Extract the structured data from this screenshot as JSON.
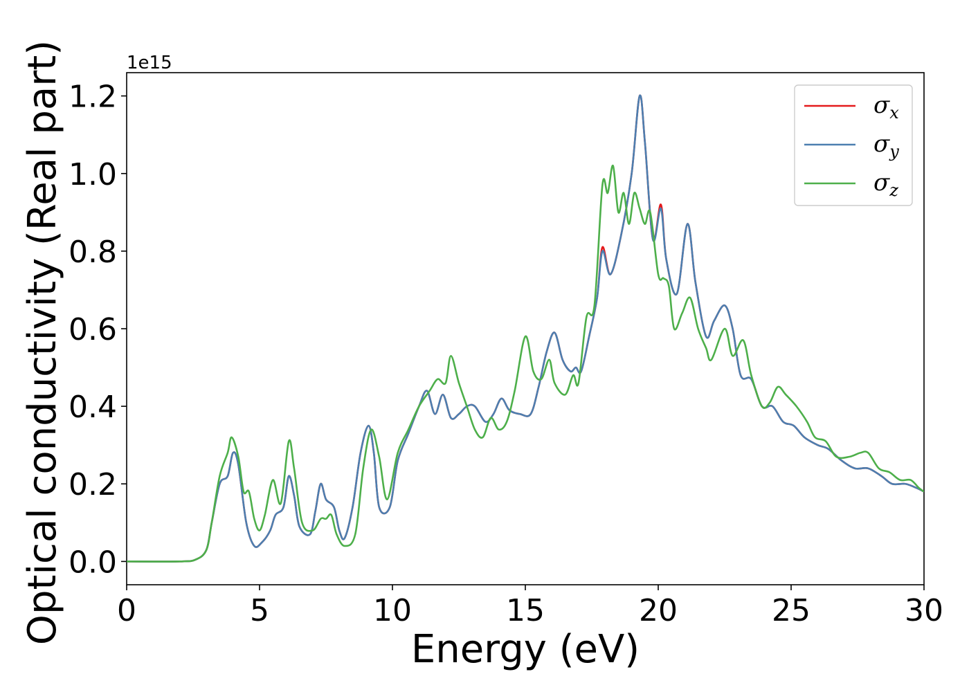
{
  "chart_data": {
    "type": "line",
    "title": "",
    "xlabel": "Energy (eV)",
    "ylabel": "Optical conductivity (Real part)",
    "y_offset_label": "1e15",
    "xlim": [
      0,
      30
    ],
    "ylim": [
      -0.06,
      1.26
    ],
    "xticks": [
      0,
      5,
      10,
      15,
      20,
      25,
      30
    ],
    "yticks": [
      0.0,
      0.2,
      0.4,
      0.6,
      0.8,
      1.0,
      1.2
    ],
    "xtick_labels": [
      "0",
      "5",
      "10",
      "15",
      "20",
      "25",
      "30"
    ],
    "ytick_labels": [
      "0.0",
      "0.2",
      "0.4",
      "0.6",
      "0.8",
      "1.0",
      "1.2"
    ],
    "grid": false,
    "legend_position": "top-right",
    "series": [
      {
        "name": "σ",
        "subscript": "x",
        "color": "#e41a1c",
        "points": [
          [
            0,
            0.0
          ],
          [
            2,
            0.0
          ],
          [
            2.6,
            0.005
          ],
          [
            3.0,
            0.03
          ],
          [
            3.2,
            0.1
          ],
          [
            3.5,
            0.2
          ],
          [
            3.8,
            0.22
          ],
          [
            4.0,
            0.28
          ],
          [
            4.2,
            0.25
          ],
          [
            4.5,
            0.1
          ],
          [
            4.8,
            0.04
          ],
          [
            5.1,
            0.05
          ],
          [
            5.4,
            0.08
          ],
          [
            5.6,
            0.12
          ],
          [
            5.9,
            0.14
          ],
          [
            6.1,
            0.22
          ],
          [
            6.3,
            0.17
          ],
          [
            6.5,
            0.09
          ],
          [
            6.9,
            0.07
          ],
          [
            7.1,
            0.13
          ],
          [
            7.3,
            0.2
          ],
          [
            7.5,
            0.16
          ],
          [
            7.8,
            0.14
          ],
          [
            8.0,
            0.08
          ],
          [
            8.2,
            0.06
          ],
          [
            8.5,
            0.14
          ],
          [
            8.8,
            0.28
          ],
          [
            9.1,
            0.35
          ],
          [
            9.3,
            0.28
          ],
          [
            9.5,
            0.14
          ],
          [
            9.9,
            0.14
          ],
          [
            10.2,
            0.26
          ],
          [
            10.6,
            0.33
          ],
          [
            11.0,
            0.4
          ],
          [
            11.3,
            0.44
          ],
          [
            11.6,
            0.38
          ],
          [
            11.9,
            0.43
          ],
          [
            12.2,
            0.37
          ],
          [
            12.5,
            0.38
          ],
          [
            12.8,
            0.4
          ],
          [
            13.1,
            0.4
          ],
          [
            13.5,
            0.36
          ],
          [
            13.8,
            0.38
          ],
          [
            14.1,
            0.42
          ],
          [
            14.4,
            0.39
          ],
          [
            14.8,
            0.38
          ],
          [
            15.2,
            0.38
          ],
          [
            15.5,
            0.45
          ],
          [
            15.8,
            0.54
          ],
          [
            16.1,
            0.59
          ],
          [
            16.4,
            0.52
          ],
          [
            16.7,
            0.49
          ],
          [
            16.9,
            0.5
          ],
          [
            17.1,
            0.49
          ],
          [
            17.4,
            0.58
          ],
          [
            17.7,
            0.68
          ],
          [
            17.9,
            0.81
          ],
          [
            18.2,
            0.74
          ],
          [
            18.6,
            0.84
          ],
          [
            19.0,
            1.0
          ],
          [
            19.3,
            1.2
          ],
          [
            19.5,
            1.08
          ],
          [
            19.8,
            0.83
          ],
          [
            20.1,
            0.92
          ],
          [
            20.3,
            0.78
          ],
          [
            20.7,
            0.69
          ],
          [
            21.1,
            0.87
          ],
          [
            21.4,
            0.72
          ],
          [
            21.8,
            0.58
          ],
          [
            22.1,
            0.62
          ],
          [
            22.5,
            0.66
          ],
          [
            22.8,
            0.6
          ],
          [
            23.1,
            0.48
          ],
          [
            23.5,
            0.47
          ],
          [
            23.9,
            0.4
          ],
          [
            24.3,
            0.4
          ],
          [
            24.7,
            0.36
          ],
          [
            25.1,
            0.35
          ],
          [
            25.5,
            0.32
          ],
          [
            26.0,
            0.3
          ],
          [
            26.4,
            0.29
          ],
          [
            26.9,
            0.26
          ],
          [
            27.4,
            0.24
          ],
          [
            27.9,
            0.24
          ],
          [
            28.4,
            0.22
          ],
          [
            28.8,
            0.2
          ],
          [
            29.3,
            0.2
          ],
          [
            29.7,
            0.19
          ],
          [
            30.0,
            0.18
          ]
        ]
      },
      {
        "name": "σ",
        "subscript": "y",
        "color": "#4c7fb0",
        "points": [
          [
            0,
            0.0
          ],
          [
            2,
            0.0
          ],
          [
            2.6,
            0.005
          ],
          [
            3.0,
            0.03
          ],
          [
            3.2,
            0.1
          ],
          [
            3.5,
            0.2
          ],
          [
            3.8,
            0.22
          ],
          [
            4.0,
            0.28
          ],
          [
            4.2,
            0.25
          ],
          [
            4.5,
            0.1
          ],
          [
            4.8,
            0.04
          ],
          [
            5.1,
            0.05
          ],
          [
            5.4,
            0.08
          ],
          [
            5.6,
            0.12
          ],
          [
            5.9,
            0.14
          ],
          [
            6.1,
            0.22
          ],
          [
            6.3,
            0.17
          ],
          [
            6.5,
            0.09
          ],
          [
            6.9,
            0.07
          ],
          [
            7.1,
            0.13
          ],
          [
            7.3,
            0.2
          ],
          [
            7.5,
            0.16
          ],
          [
            7.8,
            0.14
          ],
          [
            8.0,
            0.08
          ],
          [
            8.2,
            0.06
          ],
          [
            8.5,
            0.14
          ],
          [
            8.8,
            0.28
          ],
          [
            9.1,
            0.35
          ],
          [
            9.3,
            0.28
          ],
          [
            9.5,
            0.14
          ],
          [
            9.9,
            0.14
          ],
          [
            10.2,
            0.26
          ],
          [
            10.6,
            0.33
          ],
          [
            11.0,
            0.4
          ],
          [
            11.3,
            0.44
          ],
          [
            11.6,
            0.38
          ],
          [
            11.9,
            0.43
          ],
          [
            12.2,
            0.37
          ],
          [
            12.5,
            0.38
          ],
          [
            12.8,
            0.4
          ],
          [
            13.1,
            0.4
          ],
          [
            13.5,
            0.36
          ],
          [
            13.8,
            0.38
          ],
          [
            14.1,
            0.42
          ],
          [
            14.4,
            0.39
          ],
          [
            14.8,
            0.38
          ],
          [
            15.2,
            0.38
          ],
          [
            15.5,
            0.45
          ],
          [
            15.8,
            0.54
          ],
          [
            16.1,
            0.59
          ],
          [
            16.4,
            0.52
          ],
          [
            16.7,
            0.49
          ],
          [
            16.9,
            0.5
          ],
          [
            17.1,
            0.49
          ],
          [
            17.4,
            0.58
          ],
          [
            17.7,
            0.68
          ],
          [
            17.9,
            0.8
          ],
          [
            18.2,
            0.74
          ],
          [
            18.6,
            0.84
          ],
          [
            19.0,
            1.0
          ],
          [
            19.3,
            1.2
          ],
          [
            19.5,
            1.08
          ],
          [
            19.8,
            0.83
          ],
          [
            20.1,
            0.91
          ],
          [
            20.3,
            0.78
          ],
          [
            20.7,
            0.69
          ],
          [
            21.1,
            0.87
          ],
          [
            21.4,
            0.72
          ],
          [
            21.8,
            0.58
          ],
          [
            22.1,
            0.62
          ],
          [
            22.5,
            0.66
          ],
          [
            22.8,
            0.6
          ],
          [
            23.1,
            0.48
          ],
          [
            23.5,
            0.47
          ],
          [
            23.9,
            0.4
          ],
          [
            24.3,
            0.4
          ],
          [
            24.7,
            0.36
          ],
          [
            25.1,
            0.35
          ],
          [
            25.5,
            0.32
          ],
          [
            26.0,
            0.3
          ],
          [
            26.4,
            0.29
          ],
          [
            26.9,
            0.26
          ],
          [
            27.4,
            0.24
          ],
          [
            27.9,
            0.24
          ],
          [
            28.4,
            0.22
          ],
          [
            28.8,
            0.2
          ],
          [
            29.3,
            0.2
          ],
          [
            29.7,
            0.19
          ],
          [
            30.0,
            0.18
          ]
        ]
      },
      {
        "name": "σ",
        "subscript": "z",
        "color": "#4daf4a",
        "points": [
          [
            0,
            0.0
          ],
          [
            2,
            0.0
          ],
          [
            2.6,
            0.005
          ],
          [
            3.0,
            0.03
          ],
          [
            3.2,
            0.1
          ],
          [
            3.5,
            0.22
          ],
          [
            3.8,
            0.28
          ],
          [
            3.95,
            0.32
          ],
          [
            4.2,
            0.27
          ],
          [
            4.4,
            0.18
          ],
          [
            4.6,
            0.18
          ],
          [
            4.8,
            0.11
          ],
          [
            5.0,
            0.08
          ],
          [
            5.2,
            0.12
          ],
          [
            5.5,
            0.21
          ],
          [
            5.8,
            0.15
          ],
          [
            6.1,
            0.31
          ],
          [
            6.3,
            0.24
          ],
          [
            6.6,
            0.1
          ],
          [
            7.0,
            0.08
          ],
          [
            7.3,
            0.11
          ],
          [
            7.5,
            0.11
          ],
          [
            7.7,
            0.12
          ],
          [
            7.9,
            0.07
          ],
          [
            8.2,
            0.04
          ],
          [
            8.6,
            0.07
          ],
          [
            8.9,
            0.24
          ],
          [
            9.2,
            0.34
          ],
          [
            9.5,
            0.27
          ],
          [
            9.8,
            0.16
          ],
          [
            10.2,
            0.28
          ],
          [
            10.6,
            0.34
          ],
          [
            11.0,
            0.4
          ],
          [
            11.4,
            0.44
          ],
          [
            11.7,
            0.47
          ],
          [
            12.0,
            0.46
          ],
          [
            12.2,
            0.53
          ],
          [
            12.5,
            0.46
          ],
          [
            12.8,
            0.4
          ],
          [
            13.1,
            0.34
          ],
          [
            13.4,
            0.32
          ],
          [
            13.7,
            0.37
          ],
          [
            14.0,
            0.34
          ],
          [
            14.3,
            0.36
          ],
          [
            14.6,
            0.44
          ],
          [
            15.0,
            0.58
          ],
          [
            15.3,
            0.49
          ],
          [
            15.6,
            0.47
          ],
          [
            15.9,
            0.52
          ],
          [
            16.1,
            0.46
          ],
          [
            16.5,
            0.43
          ],
          [
            16.8,
            0.48
          ],
          [
            17.0,
            0.46
          ],
          [
            17.3,
            0.63
          ],
          [
            17.6,
            0.66
          ],
          [
            17.9,
            0.97
          ],
          [
            18.1,
            0.95
          ],
          [
            18.3,
            1.02
          ],
          [
            18.5,
            0.9
          ],
          [
            18.7,
            0.95
          ],
          [
            18.9,
            0.87
          ],
          [
            19.1,
            0.95
          ],
          [
            19.3,
            0.91
          ],
          [
            19.5,
            0.87
          ],
          [
            19.7,
            0.9
          ],
          [
            20.0,
            0.74
          ],
          [
            20.2,
            0.73
          ],
          [
            20.4,
            0.71
          ],
          [
            20.6,
            0.6
          ],
          [
            20.9,
            0.64
          ],
          [
            21.2,
            0.68
          ],
          [
            21.5,
            0.6
          ],
          [
            21.8,
            0.55
          ],
          [
            22.0,
            0.52
          ],
          [
            22.5,
            0.6
          ],
          [
            22.8,
            0.53
          ],
          [
            23.2,
            0.57
          ],
          [
            23.5,
            0.48
          ],
          [
            23.9,
            0.4
          ],
          [
            24.2,
            0.41
          ],
          [
            24.5,
            0.45
          ],
          [
            24.8,
            0.43
          ],
          [
            25.2,
            0.4
          ],
          [
            25.6,
            0.36
          ],
          [
            25.9,
            0.32
          ],
          [
            26.3,
            0.31
          ],
          [
            26.7,
            0.27
          ],
          [
            27.2,
            0.27
          ],
          [
            27.6,
            0.28
          ],
          [
            27.9,
            0.28
          ],
          [
            28.3,
            0.24
          ],
          [
            28.7,
            0.23
          ],
          [
            29.1,
            0.21
          ],
          [
            29.5,
            0.21
          ],
          [
            29.8,
            0.19
          ],
          [
            30.0,
            0.18
          ]
        ]
      }
    ]
  },
  "legend_colors": {
    "border": "#cccccc"
  }
}
